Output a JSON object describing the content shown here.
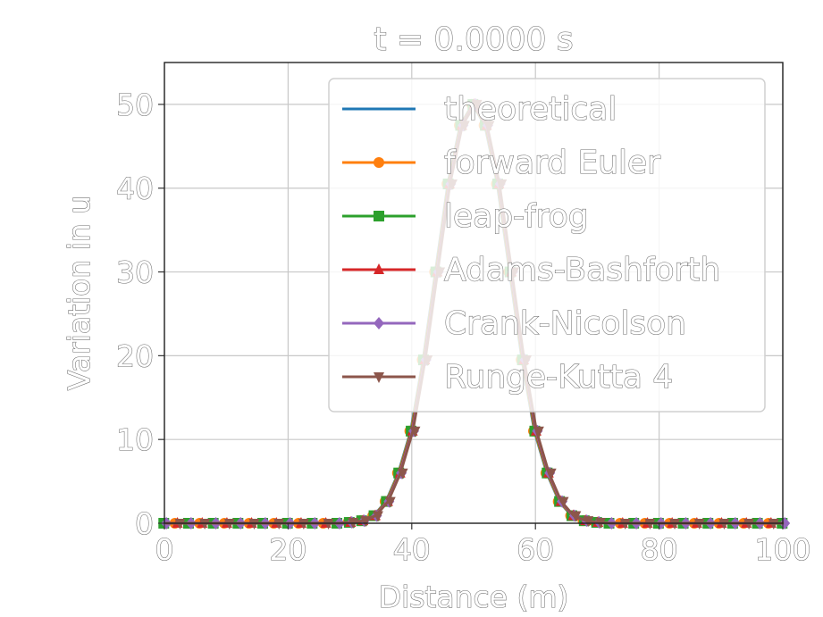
{
  "chart_data": {
    "type": "line",
    "title": "t = 0.0000 s",
    "xlabel": "Distance (m)",
    "ylabel": "Variation in u",
    "xlim": [
      0,
      100
    ],
    "ylim": [
      0,
      55
    ],
    "xticks": [
      "0",
      "20",
      "40",
      "60",
      "80",
      "100"
    ],
    "yticks": [
      "0",
      "10",
      "20",
      "30",
      "40",
      "50"
    ],
    "grid": true,
    "legend_position": "upper right",
    "series": [
      {
        "name": "theoretical",
        "color": "#1f77b4",
        "marker": "none"
      },
      {
        "name": "forward Euler",
        "color": "#ff7f0e",
        "marker": "circle"
      },
      {
        "name": "leap-frog",
        "color": "#2ca02c",
        "marker": "square"
      },
      {
        "name": "Adams-Bashforth",
        "color": "#d62728",
        "marker": "triangle-up"
      },
      {
        "name": "Crank-Nicolson",
        "color": "#9467bd",
        "marker": "diamond"
      },
      {
        "name": "Runge-Kutta 4",
        "color": "#8c564b",
        "marker": "triangle-down"
      }
    ],
    "curve": {
      "description_values": "Gaussian pulse sampled on x grid",
      "x": [
        0,
        2,
        4,
        6,
        8,
        10,
        12,
        14,
        16,
        18,
        20,
        22,
        24,
        26,
        28,
        30,
        32,
        34,
        36,
        38,
        40,
        42,
        44,
        46,
        48,
        50,
        52,
        54,
        56,
        58,
        60,
        62,
        64,
        66,
        68,
        70,
        72,
        74,
        76,
        78,
        80,
        82,
        84,
        86,
        88,
        90,
        92,
        94,
        96,
        98,
        100
      ],
      "y": [
        0,
        0,
        0,
        0,
        0,
        0,
        0,
        0,
        0,
        0,
        0,
        0,
        0,
        0,
        0,
        0.1,
        0.3,
        0.9,
        2.6,
        6.0,
        11.0,
        19.5,
        30.0,
        40.5,
        47.5,
        50.0,
        47.5,
        40.5,
        30.0,
        19.5,
        11.0,
        6.0,
        2.6,
        0.9,
        0.3,
        0.1,
        0,
        0,
        0,
        0,
        0,
        0,
        0,
        0,
        0,
        0,
        0,
        0,
        0,
        0,
        0
      ]
    }
  }
}
